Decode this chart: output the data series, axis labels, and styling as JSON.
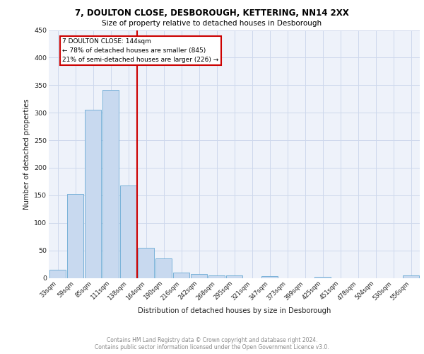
{
  "title1": "7, DOULTON CLOSE, DESBOROUGH, KETTERING, NN14 2XX",
  "title2": "Size of property relative to detached houses in Desborough",
  "xlabel": "Distribution of detached houses by size in Desborough",
  "ylabel": "Number of detached properties",
  "categories": [
    "33sqm",
    "59sqm",
    "85sqm",
    "111sqm",
    "138sqm",
    "164sqm",
    "190sqm",
    "216sqm",
    "242sqm",
    "268sqm",
    "295sqm",
    "321sqm",
    "347sqm",
    "373sqm",
    "399sqm",
    "425sqm",
    "451sqm",
    "478sqm",
    "504sqm",
    "530sqm",
    "556sqm"
  ],
  "values": [
    15,
    153,
    306,
    341,
    168,
    55,
    35,
    10,
    7,
    5,
    4,
    0,
    3,
    0,
    0,
    2,
    0,
    0,
    0,
    0,
    4
  ],
  "bar_color": "#c8d9ef",
  "bar_edge_color": "#6aaad4",
  "grid_color": "#cdd8ec",
  "background_color": "#eef2fa",
  "vline_x": 4.5,
  "vline_color": "#cc0000",
  "annotation_text": "7 DOULTON CLOSE: 144sqm\n← 78% of detached houses are smaller (845)\n21% of semi-detached houses are larger (226) →",
  "annotation_box_color": "#cc0000",
  "footer_text1": "Contains HM Land Registry data © Crown copyright and database right 2024.",
  "footer_text2": "Contains public sector information licensed under the Open Government Licence v3.0.",
  "ylim": [
    0,
    450
  ],
  "yticks": [
    0,
    50,
    100,
    150,
    200,
    250,
    300,
    350,
    400,
    450
  ]
}
